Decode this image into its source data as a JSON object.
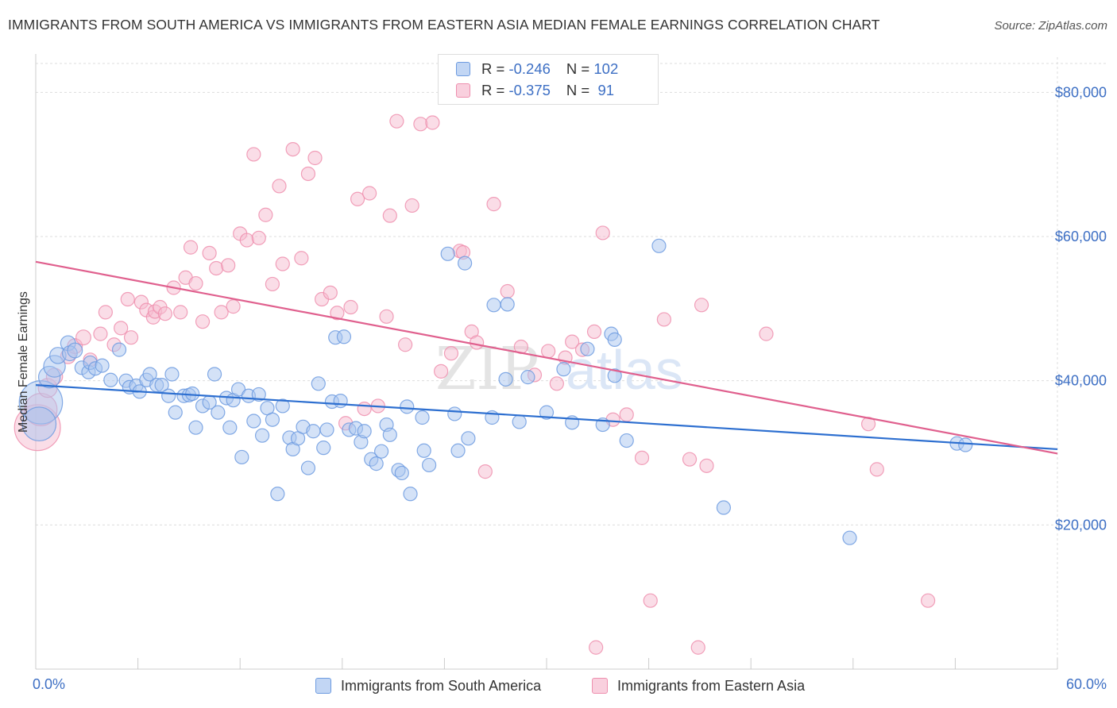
{
  "title": "IMMIGRANTS FROM SOUTH AMERICA VS IMMIGRANTS FROM EASTERN ASIA MEDIAN FEMALE EARNINGS CORRELATION CHART",
  "source": "Source: ZipAtlas.com",
  "watermark": {
    "zip": "ZIP",
    "atlas": "atlas"
  },
  "legend": {
    "rows": [
      {
        "r_label": "R = ",
        "r_value": "-0.246",
        "n_label": "N = ",
        "n_value": "102",
        "color": "#6d9be0"
      },
      {
        "r_label": "R = ",
        "r_value": "-0.375",
        "n_label": "N = ",
        "n_value": " 91",
        "color": "#ee8fae"
      }
    ]
  },
  "bottom_legend": {
    "series1": "Immigrants from South America",
    "series2": "Immigrants from Eastern Asia"
  },
  "colors": {
    "blue_fill": "#a9c6f0",
    "blue_stroke": "#6d9be0",
    "blue_line": "#2d6fd0",
    "pink_fill": "#f6bcd0",
    "pink_stroke": "#ee8fae",
    "pink_line": "#e0608e",
    "axis_text": "#3d6fc4",
    "grid": "#dddddd"
  },
  "chart_data": {
    "type": "scatter",
    "title": "IMMIGRANTS FROM SOUTH AMERICA VS IMMIGRANTS FROM EASTERN ASIA MEDIAN FEMALE EARNINGS CORRELATION CHART",
    "xlabel": "",
    "ylabel": "Median Female Earnings",
    "xlim": [
      0,
      60
    ],
    "ylim": [
      0,
      84000
    ],
    "x_tick_labels": [
      "0.0%",
      "60.0%"
    ],
    "y_ticks": [
      20000,
      40000,
      60000,
      80000
    ],
    "y_tick_labels": [
      "$20,000",
      "$40,000",
      "$60,000",
      "$80,000"
    ],
    "grid": true,
    "legend_position": "top-center",
    "series": [
      {
        "name": "Immigrants from South America",
        "color": "#6d9be0",
        "trend": {
          "x": [
            0,
            60
          ],
          "y": [
            39400,
            30500
          ]
        },
        "points": [
          [
            0.3,
            37000,
            3.2
          ],
          [
            0.2,
            34000,
            2.5
          ],
          [
            0.8,
            40500,
            1.6
          ],
          [
            1.1,
            42000,
            1.6
          ],
          [
            1.3,
            43500,
            1.2
          ],
          [
            1.9,
            45200,
            1.1
          ],
          [
            2.0,
            43800,
            1.1
          ],
          [
            2.3,
            44200,
            1.1
          ],
          [
            2.7,
            41800,
            1
          ],
          [
            3.1,
            41200,
            1
          ],
          [
            3.2,
            42500,
            1
          ],
          [
            3.5,
            41700,
            1
          ],
          [
            3.9,
            42100,
            1
          ],
          [
            4.4,
            40100,
            1
          ],
          [
            4.9,
            44300,
            1
          ],
          [
            5.3,
            40000,
            1
          ],
          [
            5.5,
            39100,
            1
          ],
          [
            5.9,
            39300,
            1
          ],
          [
            6.1,
            38500,
            1
          ],
          [
            6.5,
            40100,
            1
          ],
          [
            6.7,
            40900,
            1
          ],
          [
            7.1,
            39400,
            1
          ],
          [
            7.4,
            39400,
            1
          ],
          [
            7.8,
            37900,
            1
          ],
          [
            8.0,
            40900,
            1
          ],
          [
            8.2,
            35600,
            1
          ],
          [
            8.7,
            37900,
            1
          ],
          [
            9.0,
            38000,
            1
          ],
          [
            9.2,
            38200,
            1
          ],
          [
            9.4,
            33500,
            1
          ],
          [
            9.8,
            36500,
            1
          ],
          [
            10.2,
            37000,
            1
          ],
          [
            10.5,
            40900,
            1
          ],
          [
            10.7,
            35600,
            1
          ],
          [
            11.2,
            37600,
            1
          ],
          [
            11.4,
            33500,
            1
          ],
          [
            11.6,
            37300,
            1
          ],
          [
            11.9,
            38800,
            1
          ],
          [
            12.1,
            29400,
            1
          ],
          [
            12.5,
            37900,
            1
          ],
          [
            12.8,
            34400,
            1
          ],
          [
            13.1,
            38100,
            1
          ],
          [
            13.3,
            32400,
            1
          ],
          [
            13.6,
            36200,
            1
          ],
          [
            13.9,
            34600,
            1
          ],
          [
            14.2,
            24300,
            1
          ],
          [
            14.5,
            36500,
            1
          ],
          [
            14.9,
            32100,
            1
          ],
          [
            15.1,
            30500,
            1
          ],
          [
            15.4,
            32000,
            1
          ],
          [
            15.7,
            33600,
            1
          ],
          [
            16.0,
            27900,
            1
          ],
          [
            16.3,
            33000,
            1
          ],
          [
            16.6,
            39600,
            1
          ],
          [
            16.9,
            30700,
            1
          ],
          [
            17.1,
            33200,
            1
          ],
          [
            17.4,
            37100,
            1
          ],
          [
            17.6,
            46000,
            1
          ],
          [
            17.9,
            37200,
            1
          ],
          [
            18.1,
            46100,
            1
          ],
          [
            18.4,
            33200,
            1
          ],
          [
            18.8,
            33400,
            1
          ],
          [
            19.1,
            31500,
            1
          ],
          [
            19.3,
            33000,
            1
          ],
          [
            19.7,
            29100,
            1
          ],
          [
            20.0,
            28500,
            1
          ],
          [
            20.3,
            30200,
            1
          ],
          [
            20.6,
            33900,
            1
          ],
          [
            20.8,
            32500,
            1
          ],
          [
            21.3,
            27600,
            1
          ],
          [
            21.5,
            27200,
            1
          ],
          [
            21.8,
            36400,
            1
          ],
          [
            22.0,
            24300,
            1
          ],
          [
            22.7,
            34900,
            1
          ],
          [
            22.8,
            30300,
            1
          ],
          [
            23.1,
            28300,
            1
          ],
          [
            24.2,
            57600,
            1
          ],
          [
            24.6,
            35400,
            1
          ],
          [
            24.8,
            30300,
            1
          ],
          [
            25.2,
            56300,
            1
          ],
          [
            25.4,
            32000,
            1
          ],
          [
            26.8,
            34900,
            1
          ],
          [
            26.9,
            50500,
            1
          ],
          [
            27.6,
            40200,
            1
          ],
          [
            27.7,
            50600,
            1
          ],
          [
            28.4,
            34300,
            1
          ],
          [
            28.9,
            40500,
            1
          ],
          [
            30.0,
            35600,
            1
          ],
          [
            31.0,
            41600,
            1
          ],
          [
            31.5,
            34200,
            1
          ],
          [
            32.4,
            44400,
            1
          ],
          [
            33.3,
            33900,
            1
          ],
          [
            33.8,
            46500,
            1
          ],
          [
            34.0,
            45700,
            1
          ],
          [
            34.0,
            40700,
            1
          ],
          [
            34.7,
            31700,
            1
          ],
          [
            36.6,
            58700,
            1
          ],
          [
            40.4,
            22400,
            1
          ],
          [
            47.8,
            18200,
            1
          ],
          [
            54.1,
            31300,
            1
          ],
          [
            54.6,
            31100,
            1
          ]
        ]
      },
      {
        "name": "Immigrants from Eastern Asia",
        "color": "#ee8fae",
        "trend": {
          "x": [
            0,
            60
          ],
          "y": [
            56500,
            29900
          ]
        },
        "points": [
          [
            0.1,
            33500,
            3.4
          ],
          [
            0.3,
            36000,
            2.4
          ],
          [
            0.7,
            39000,
            1.4
          ],
          [
            1.1,
            40600,
            1.2
          ],
          [
            1.9,
            43400,
            1.1
          ],
          [
            2.3,
            44800,
            1.1
          ],
          [
            2.8,
            46000,
            1.1
          ],
          [
            3.2,
            42900,
            1
          ],
          [
            3.8,
            46500,
            1
          ],
          [
            4.1,
            49500,
            1
          ],
          [
            4.6,
            45000,
            1
          ],
          [
            5.0,
            47300,
            1
          ],
          [
            5.4,
            51300,
            1
          ],
          [
            5.6,
            46000,
            1
          ],
          [
            6.2,
            50900,
            1
          ],
          [
            6.5,
            49800,
            1
          ],
          [
            6.9,
            48800,
            1
          ],
          [
            7.0,
            49600,
            1
          ],
          [
            7.3,
            50200,
            1
          ],
          [
            7.6,
            49300,
            1
          ],
          [
            8.1,
            52900,
            1
          ],
          [
            8.5,
            49500,
            1
          ],
          [
            8.8,
            54300,
            1
          ],
          [
            9.1,
            58500,
            1
          ],
          [
            9.4,
            53500,
            1
          ],
          [
            9.8,
            48200,
            1
          ],
          [
            10.2,
            57700,
            1
          ],
          [
            10.6,
            55600,
            1
          ],
          [
            10.9,
            49500,
            1
          ],
          [
            11.3,
            56000,
            1
          ],
          [
            11.6,
            50300,
            1
          ],
          [
            12.0,
            60400,
            1
          ],
          [
            12.4,
            59500,
            1
          ],
          [
            12.8,
            71400,
            1
          ],
          [
            13.1,
            59800,
            1
          ],
          [
            13.5,
            63000,
            1
          ],
          [
            13.9,
            53400,
            1
          ],
          [
            14.3,
            67000,
            1
          ],
          [
            14.5,
            56200,
            1
          ],
          [
            15.1,
            72100,
            1
          ],
          [
            15.6,
            57000,
            1
          ],
          [
            16.0,
            68700,
            1
          ],
          [
            16.4,
            70900,
            1
          ],
          [
            16.8,
            51300,
            1
          ],
          [
            17.3,
            52200,
            1
          ],
          [
            17.7,
            49400,
            1
          ],
          [
            18.2,
            34100,
            1
          ],
          [
            18.5,
            50200,
            1
          ],
          [
            18.9,
            65200,
            1
          ],
          [
            19.3,
            36100,
            1
          ],
          [
            19.6,
            66000,
            1
          ],
          [
            20.1,
            36500,
            1
          ],
          [
            20.6,
            48900,
            1
          ],
          [
            20.8,
            62900,
            1
          ],
          [
            21.2,
            76000,
            1
          ],
          [
            21.7,
            45000,
            1
          ],
          [
            22.1,
            64300,
            1
          ],
          [
            22.6,
            75600,
            1
          ],
          [
            23.3,
            75800,
            1
          ],
          [
            23.8,
            41300,
            1
          ],
          [
            24.4,
            43800,
            1
          ],
          [
            24.9,
            58000,
            1
          ],
          [
            25.1,
            57800,
            1
          ],
          [
            25.6,
            46800,
            1
          ],
          [
            25.9,
            45300,
            1
          ],
          [
            26.4,
            27400,
            1
          ],
          [
            26.9,
            64500,
            1
          ],
          [
            27.7,
            52400,
            1
          ],
          [
            28.5,
            44700,
            1
          ],
          [
            29.3,
            40800,
            1
          ],
          [
            30.1,
            44100,
            1
          ],
          [
            30.6,
            39600,
            1
          ],
          [
            31.1,
            43200,
            1
          ],
          [
            31.5,
            45400,
            1
          ],
          [
            32.1,
            44300,
            1
          ],
          [
            32.8,
            46800,
            1
          ],
          [
            32.9,
            3000,
            1
          ],
          [
            33.3,
            60500,
            1
          ],
          [
            33.9,
            34600,
            1
          ],
          [
            34.7,
            35300,
            1
          ],
          [
            35.6,
            29300,
            1
          ],
          [
            36.1,
            9500,
            1
          ],
          [
            36.9,
            48500,
            1
          ],
          [
            38.4,
            29100,
            1
          ],
          [
            38.9,
            3000,
            1
          ],
          [
            39.1,
            50500,
            1
          ],
          [
            39.4,
            28200,
            1
          ],
          [
            42.9,
            46500,
            1
          ],
          [
            48.9,
            34000,
            1
          ],
          [
            49.4,
            27700,
            1
          ],
          [
            52.4,
            9500,
            1
          ]
        ]
      }
    ]
  }
}
